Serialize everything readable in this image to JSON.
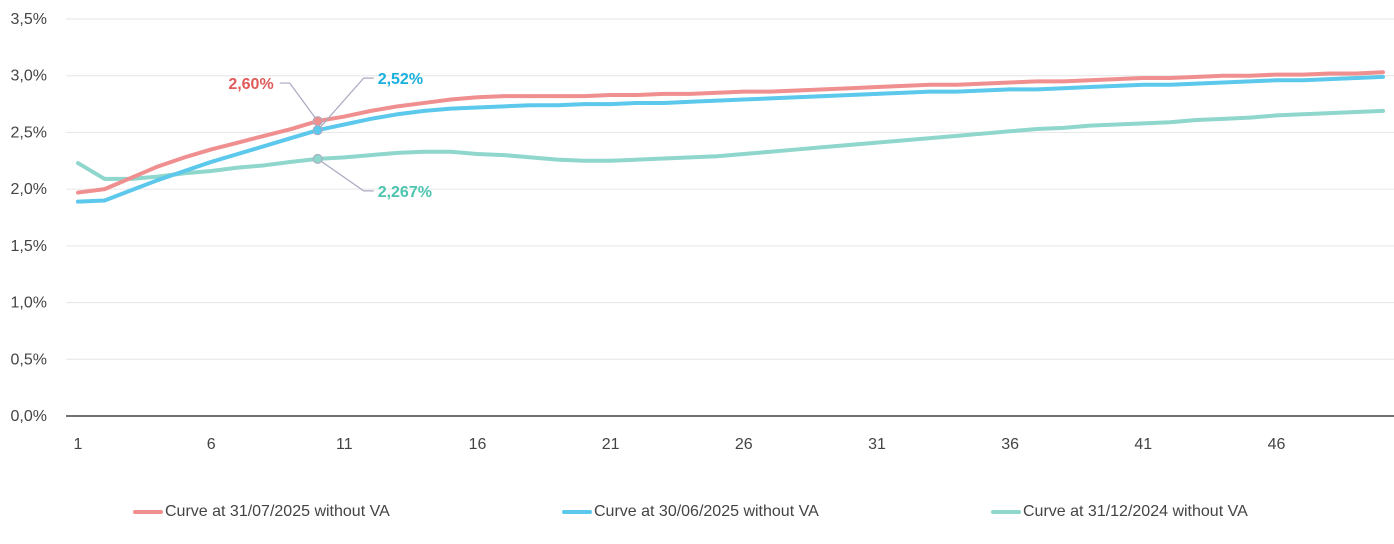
{
  "chart_data": {
    "type": "line",
    "title": "",
    "xlabel": "",
    "ylabel": "",
    "x": [
      1,
      2,
      3,
      4,
      5,
      6,
      7,
      8,
      9,
      10,
      11,
      12,
      13,
      14,
      15,
      16,
      17,
      18,
      19,
      20,
      21,
      22,
      23,
      24,
      25,
      26,
      27,
      28,
      29,
      30,
      31,
      32,
      33,
      34,
      35,
      36,
      37,
      38,
      39,
      40,
      41,
      42,
      43,
      44,
      45,
      46,
      47,
      48,
      49,
      50
    ],
    "x_ticks": [
      1,
      6,
      11,
      16,
      21,
      26,
      31,
      36,
      41,
      46
    ],
    "x_tick_labels": [
      "1",
      "6",
      "11",
      "16",
      "21",
      "26",
      "31",
      "36",
      "41",
      "46"
    ],
    "xlim": [
      1,
      50
    ],
    "y_ticks": [
      0.0,
      0.5,
      1.0,
      1.5,
      2.0,
      2.5,
      3.0,
      3.5
    ],
    "y_tick_labels": [
      "0,0%",
      "0,5%",
      "1,0%",
      "1,5%",
      "2,0%",
      "2,5%",
      "3,0%",
      "3,5%"
    ],
    "ylim": [
      0,
      3.5
    ],
    "grid": true,
    "legend_position": "bottom",
    "series": [
      {
        "name": "Curve at 31/07/2025 without VA",
        "color": "#ef8f8f",
        "values": [
          1.97,
          2.0,
          2.1,
          2.2,
          2.28,
          2.35,
          2.41,
          2.47,
          2.53,
          2.6,
          2.64,
          2.69,
          2.73,
          2.76,
          2.79,
          2.81,
          2.82,
          2.82,
          2.82,
          2.82,
          2.83,
          2.83,
          2.84,
          2.84,
          2.85,
          2.86,
          2.86,
          2.87,
          2.88,
          2.89,
          2.9,
          2.91,
          2.92,
          2.92,
          2.93,
          2.94,
          2.95,
          2.95,
          2.96,
          2.97,
          2.98,
          2.98,
          2.99,
          3.0,
          3.0,
          3.01,
          3.01,
          3.02,
          3.02,
          3.03
        ]
      },
      {
        "name": "Curve at 30/06/2025 without VA",
        "color": "#5bc8ec",
        "values": [
          1.89,
          1.9,
          1.99,
          2.08,
          2.16,
          2.24,
          2.31,
          2.38,
          2.45,
          2.52,
          2.57,
          2.62,
          2.66,
          2.69,
          2.71,
          2.72,
          2.73,
          2.74,
          2.74,
          2.75,
          2.75,
          2.76,
          2.76,
          2.77,
          2.78,
          2.79,
          2.8,
          2.81,
          2.82,
          2.83,
          2.84,
          2.85,
          2.86,
          2.86,
          2.87,
          2.88,
          2.88,
          2.89,
          2.9,
          2.91,
          2.92,
          2.92,
          2.93,
          2.94,
          2.95,
          2.96,
          2.96,
          2.97,
          2.98,
          2.99
        ]
      },
      {
        "name": "Curve at 31/12/2024 without VA",
        "color": "#8fd6cc",
        "values": [
          2.23,
          2.09,
          2.09,
          2.11,
          2.14,
          2.16,
          2.19,
          2.21,
          2.24,
          2.267,
          2.28,
          2.3,
          2.32,
          2.33,
          2.33,
          2.31,
          2.3,
          2.28,
          2.26,
          2.25,
          2.25,
          2.26,
          2.27,
          2.28,
          2.29,
          2.31,
          2.33,
          2.35,
          2.37,
          2.39,
          2.41,
          2.43,
          2.45,
          2.47,
          2.49,
          2.51,
          2.53,
          2.54,
          2.56,
          2.57,
          2.58,
          2.59,
          2.61,
          2.62,
          2.63,
          2.65,
          2.66,
          2.67,
          2.68,
          2.69
        ]
      }
    ],
    "annotations": [
      {
        "series": 0,
        "x": 10,
        "y": 2.6,
        "text": "2,60%",
        "color": "#e05a5a",
        "placement": "upper-left"
      },
      {
        "series": 1,
        "x": 10,
        "y": 2.52,
        "text": "2,52%",
        "color": "#1ab0de",
        "placement": "upper-right"
      },
      {
        "series": 2,
        "x": 10,
        "y": 2.267,
        "text": "2,267%",
        "color": "#4cc4b0",
        "placement": "lower-right"
      }
    ]
  }
}
